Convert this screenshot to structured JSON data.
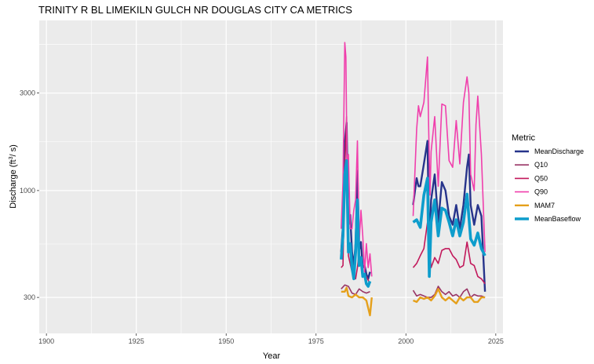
{
  "chart_data": {
    "type": "line",
    "title": "TRINITY R BL LIMEKILN GULCH NR DOUGLAS CITY CA  METRICS",
    "xlabel": "Year",
    "ylabel_main": "Discharge (ft",
    "ylabel_sup": "3",
    "ylabel_tail": "/ s)",
    "y_scale": "log10",
    "xlim": [
      1898,
      2027
    ],
    "ylim": [
      200,
      6800
    ],
    "x_ticks": [
      1900,
      1925,
      1950,
      1975,
      2000,
      2025
    ],
    "x_tick_labels": [
      "1900",
      "1925",
      "1950",
      "1975",
      "2000",
      "2025"
    ],
    "y_ticks": [
      300,
      1000,
      3000
    ],
    "y_tick_labels": [
      "300",
      "1000",
      "3000"
    ],
    "grid": true,
    "legend_title": "Metric",
    "legend_position": "right",
    "series": [
      {
        "name": "MeanDischarge",
        "color": "#27348b",
        "width": 2.4,
        "x": [
          1982,
          1982.5,
          1983,
          1983.5,
          1984,
          1984.5,
          1985,
          1985.5,
          1986,
          1986.5,
          1987,
          1987.5,
          1988,
          1988.5,
          1989,
          1989.5,
          1990,
          2002,
          2003,
          2003.5,
          2004,
          2005,
          2006,
          2006.5,
          2007,
          2008,
          2009,
          2010,
          2011,
          2012,
          2013,
          2014,
          2015,
          2016,
          2017,
          2017.5,
          2018,
          2019,
          2020,
          2021,
          2022
        ],
        "y": [
          500,
          680,
          1700,
          2150,
          680,
          760,
          500,
          430,
          550,
          1250,
          510,
          560,
          420,
          430,
          390,
          370,
          400,
          850,
          1150,
          1050,
          1050,
          1350,
          1750,
          520,
          900,
          1200,
          700,
          1100,
          1000,
          750,
          680,
          850,
          650,
          850,
          1300,
          1500,
          850,
          680,
          850,
          750,
          320
        ]
      },
      {
        "name": "Q10",
        "color": "#993566",
        "width": 1.6,
        "x": [
          1982,
          1983,
          1984,
          1985,
          1986,
          1987,
          1988,
          1989,
          1990,
          2002,
          2003,
          2004,
          2005,
          2006,
          2007,
          2008,
          2009,
          2010,
          2011,
          2012,
          2013,
          2014,
          2015,
          2016,
          2017,
          2018,
          2019,
          2020,
          2021,
          2022
        ],
        "y": [
          330,
          345,
          340,
          315,
          310,
          330,
          320,
          315,
          320,
          325,
          305,
          310,
          305,
          300,
          300,
          310,
          340,
          320,
          310,
          320,
          305,
          310,
          300,
          320,
          330,
          300,
          310,
          305,
          305,
          300
        ]
      },
      {
        "name": "Q50",
        "color": "#c2185b",
        "width": 1.6,
        "x": [
          1982,
          1982.5,
          1983,
          1983.5,
          1984,
          1985,
          1986,
          1986.5,
          1987,
          1988,
          1989,
          1990,
          2002,
          2003,
          2004,
          2005,
          2006,
          2006.5,
          2007,
          2008,
          2009,
          2010,
          2011,
          2012,
          2013,
          2014,
          2015,
          2016,
          2017,
          2018,
          2019,
          2020,
          2021,
          2022
        ],
        "y": [
          420,
          430,
          1300,
          2300,
          480,
          400,
          370,
          420,
          500,
          380,
          380,
          350,
          420,
          440,
          480,
          520,
          700,
          550,
          420,
          470,
          440,
          510,
          520,
          520,
          480,
          460,
          420,
          430,
          560,
          440,
          430,
          380,
          370,
          350
        ]
      },
      {
        "name": "Q90",
        "color": "#f03fac",
        "width": 1.6,
        "x": [
          1982,
          1982.5,
          1983,
          1983.3,
          1983.6,
          1984,
          1984.5,
          1985,
          1985.5,
          1986,
          1986.5,
          1987,
          1987.5,
          1988,
          1988.5,
          1989,
          1989.5,
          1990,
          1990.5,
          2002,
          2003,
          2003.5,
          2004,
          2005,
          2006,
          2006.3,
          2006.7,
          2007,
          2008,
          2009,
          2010,
          2011,
          2012,
          2013,
          2014,
          2015,
          2016,
          2017,
          2017.5,
          2018,
          2019,
          2019.5,
          2020,
          2021,
          2022
        ],
        "y": [
          650,
          1100,
          5300,
          4500,
          1400,
          1500,
          650,
          650,
          800,
          900,
          1750,
          550,
          800,
          600,
          400,
          550,
          420,
          490,
          380,
          750,
          2000,
          2600,
          2300,
          2700,
          4500,
          2100,
          950,
          1550,
          2300,
          1050,
          2650,
          2600,
          1400,
          1300,
          2200,
          1350,
          2700,
          3600,
          3000,
          1200,
          1000,
          2100,
          2900,
          1500,
          500
        ]
      },
      {
        "name": "MAM7",
        "color": "#e5a01b",
        "width": 2.4,
        "x": [
          1982,
          1983,
          1983.5,
          1984,
          1985,
          1986,
          1987,
          1988,
          1989,
          1990,
          1990.5,
          2002,
          2003,
          2004,
          2005,
          2006,
          2007,
          2008,
          2009,
          2010,
          2011,
          2012,
          2013,
          2014,
          2015,
          2016,
          2017,
          2018,
          2019,
          2020,
          2021,
          2022
        ],
        "y": [
          320,
          320,
          335,
          305,
          300,
          310,
          300,
          300,
          290,
          245,
          300,
          290,
          285,
          300,
          295,
          300,
          290,
          305,
          330,
          300,
          290,
          300,
          290,
          280,
          300,
          290,
          300,
          300,
          285,
          285,
          300,
          300
        ]
      },
      {
        "name": "MeanBaseflow",
        "color": "#0e9dcc",
        "width": 3.6,
        "x": [
          1982,
          1982.5,
          1983,
          1983.5,
          1984,
          1984.5,
          1985,
          1985.5,
          1986,
          1986.5,
          1987,
          1987.5,
          1988,
          1988.5,
          1989,
          1989.5,
          1990,
          2002,
          2003,
          2004,
          2005,
          2006,
          2006.5,
          2007,
          2008,
          2009,
          2010,
          2011,
          2012,
          2013,
          2014,
          2015,
          2016,
          2017,
          2018,
          2019,
          2020,
          2021,
          2022
        ],
        "y": [
          460,
          600,
          1200,
          1400,
          500,
          550,
          420,
          370,
          500,
          900,
          430,
          470,
          380,
          390,
          350,
          340,
          360,
          700,
          720,
          660,
          950,
          1150,
          380,
          700,
          900,
          600,
          820,
          800,
          700,
          600,
          720,
          600,
          700,
          960,
          580,
          540,
          620,
          520,
          480
        ]
      }
    ]
  }
}
